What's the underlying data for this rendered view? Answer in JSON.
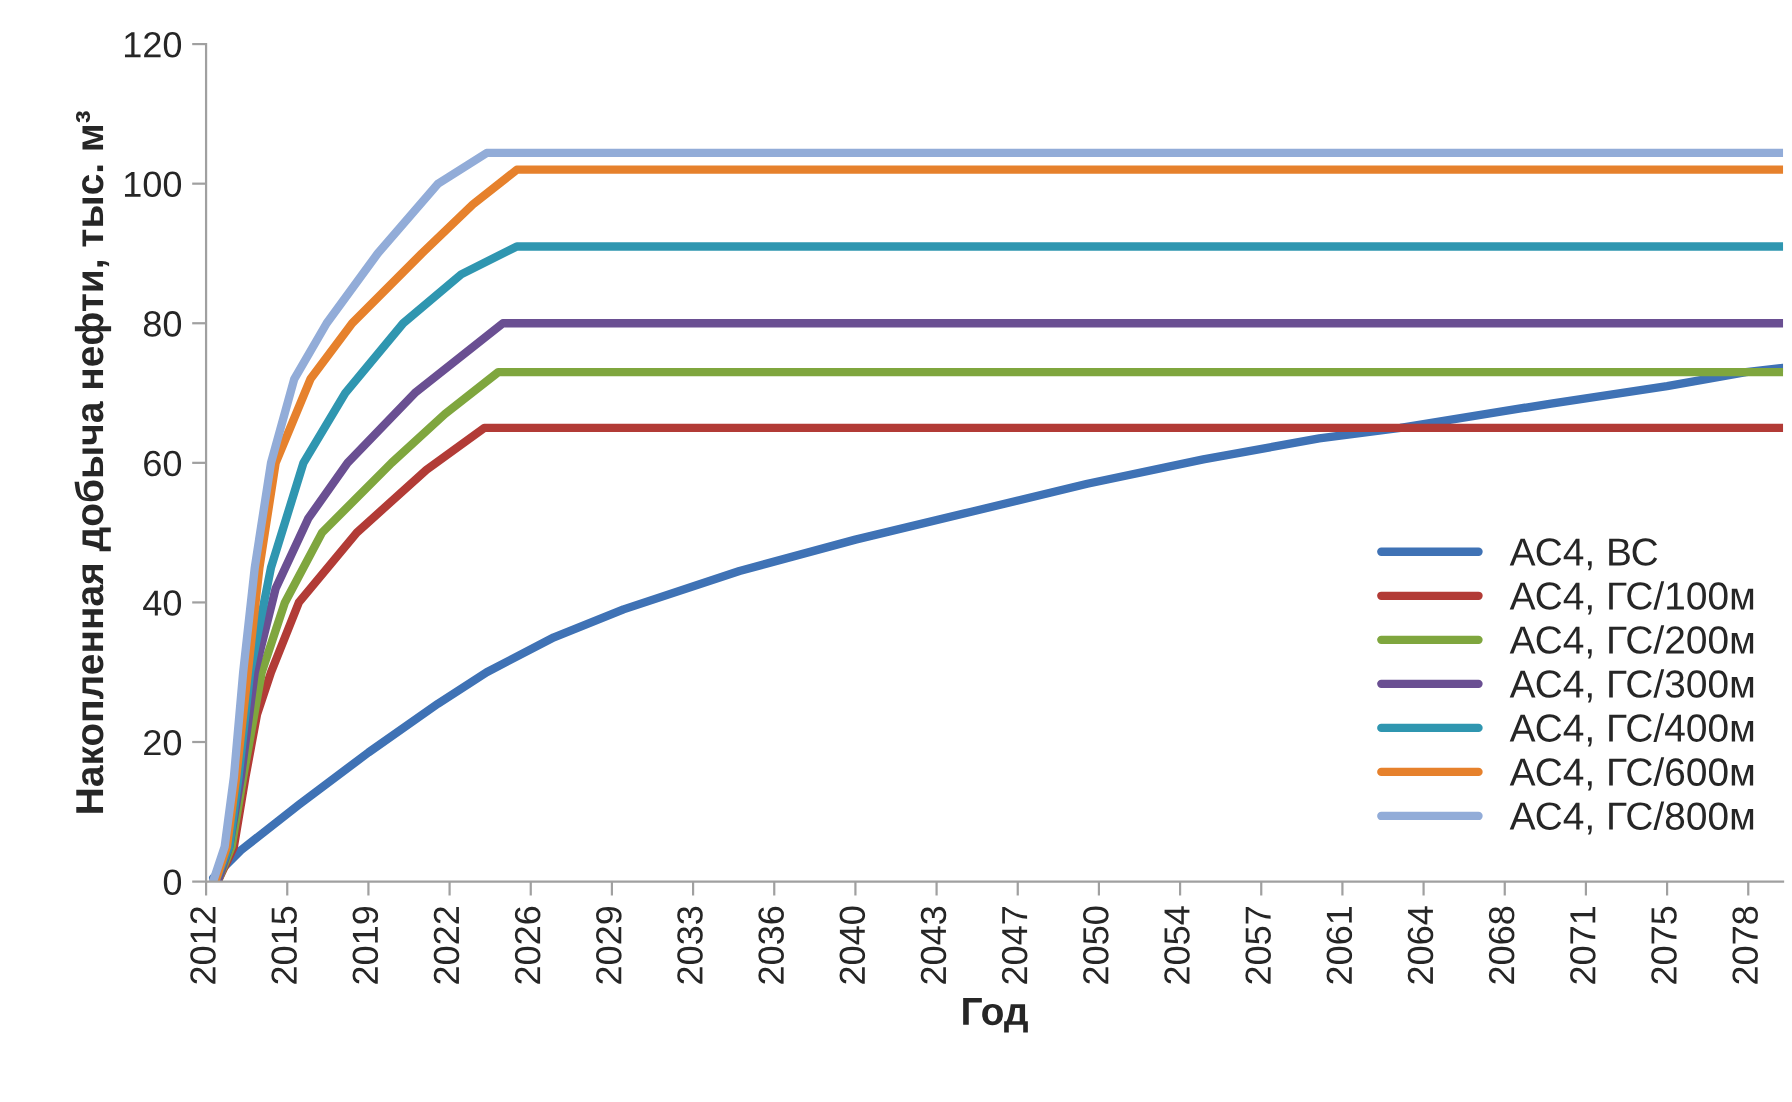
{
  "chart_data": {
    "type": "line",
    "xlabel": "Год",
    "ylabel": "Накопленная добыча нефти, тыс. м³",
    "xlim": [
      2012,
      2080
    ],
    "ylim": [
      0,
      120
    ],
    "yticks": [
      0,
      20,
      40,
      60,
      80,
      100,
      120
    ],
    "xticks": [
      {
        "value": 2012,
        "label": "2012"
      },
      {
        "value": 2015.5,
        "label": "2015"
      },
      {
        "value": 2019,
        "label": "2019"
      },
      {
        "value": 2022.5,
        "label": "2022"
      },
      {
        "value": 2026,
        "label": "2026"
      },
      {
        "value": 2029.5,
        "label": "2029"
      },
      {
        "value": 2033,
        "label": "2033"
      },
      {
        "value": 2036.5,
        "label": "2036"
      },
      {
        "value": 2040,
        "label": "2040"
      },
      {
        "value": 2043.5,
        "label": "2043"
      },
      {
        "value": 2047,
        "label": "2047"
      },
      {
        "value": 2050.5,
        "label": "2050"
      },
      {
        "value": 2054,
        "label": "2054"
      },
      {
        "value": 2057.5,
        "label": "2057"
      },
      {
        "value": 2061,
        "label": "2061"
      },
      {
        "value": 2064.5,
        "label": "2064"
      },
      {
        "value": 2068,
        "label": "2068"
      },
      {
        "value": 2071.5,
        "label": "2071"
      },
      {
        "value": 2075,
        "label": "2075"
      },
      {
        "value": 2078.5,
        "label": "2078"
      }
    ],
    "grid": false,
    "legend": "bottom right",
    "marker": "none",
    "line_style": "solid",
    "series": [
      {
        "name": "АС4, ВС",
        "color": "#3f72b5",
        "x": [
          2012.3,
          2013.5,
          2016,
          2019,
          2022,
          2024.1,
          2027,
          2030,
          2035,
          2040,
          2045,
          2050,
          2055,
          2060,
          2063.5,
          2070,
          2075,
          2078.4,
          2080
        ],
        "values": [
          0.5,
          4.5,
          11,
          18.5,
          25.5,
          30,
          35,
          39,
          44.5,
          49,
          53,
          57,
          60.5,
          63.5,
          65,
          68.5,
          71,
          73,
          73.6
        ]
      },
      {
        "name": "АС4, ГС/100м",
        "color": "#b23b36",
        "x": [
          2012.5,
          2013.2,
          2013.7,
          2014.2,
          2014.8,
          2016,
          2018.5,
          2021.5,
          2024,
          2080
        ],
        "values": [
          0,
          5,
          15,
          24,
          30,
          40,
          50,
          59,
          65,
          65
        ]
      },
      {
        "name": "АС4, ГС/200м",
        "color": "#7fa63e",
        "x": [
          2012.5,
          2013.1,
          2013.6,
          2014.4,
          2015.4,
          2017,
          2020,
          2022.3,
          2024.6,
          2080
        ],
        "values": [
          0,
          5,
          15,
          30,
          40,
          50,
          60,
          67,
          73,
          73
        ]
      },
      {
        "name": "АС4, ГС/300м",
        "color": "#6a4f92",
        "x": [
          2012.5,
          2013,
          2013.5,
          2014.1,
          2015,
          2016.4,
          2018.1,
          2021,
          2024.8,
          2080
        ],
        "values": [
          0,
          5,
          15,
          30,
          42,
          52,
          60,
          70,
          80,
          80
        ]
      },
      {
        "name": "АС4, ГС/400м",
        "color": "#2f96b0",
        "x": [
          2012.4,
          2013,
          2013.4,
          2013.9,
          2014.8,
          2016.2,
          2018,
          2020.5,
          2023,
          2025.4,
          2080
        ],
        "values": [
          0,
          5,
          15,
          30,
          45,
          60,
          70,
          80,
          87,
          91,
          91
        ]
      },
      {
        "name": "АС4, ГС/600м",
        "color": "#e6812c",
        "x": [
          2012.4,
          2012.9,
          2013.3,
          2013.8,
          2014.3,
          2015,
          2016.5,
          2018.3,
          2021.3,
          2023.5,
          2025.4,
          2080
        ],
        "values": [
          0,
          5,
          15,
          30,
          45,
          60,
          72,
          80,
          90,
          97,
          102,
          102
        ]
      },
      {
        "name": "АС4, ГС/800м",
        "color": "#92acd8",
        "x": [
          2012.3,
          2012.8,
          2013.2,
          2013.6,
          2014.1,
          2014.8,
          2015.8,
          2017.2,
          2019.4,
          2022,
          2024.1,
          2080
        ],
        "values": [
          0,
          5,
          15,
          30,
          45,
          60,
          72,
          80,
          90,
          100,
          104.4,
          104.4
        ]
      }
    ]
  }
}
